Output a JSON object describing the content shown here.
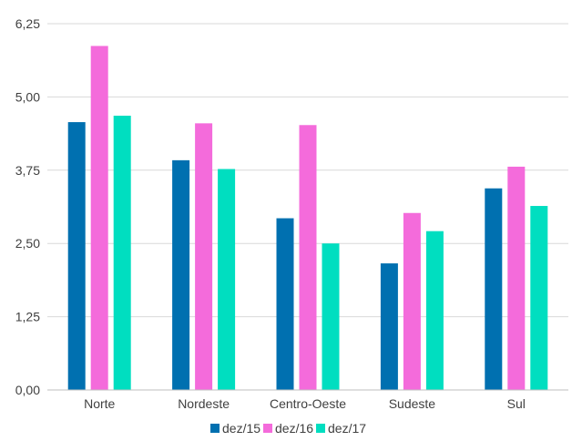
{
  "chart_data": {
    "type": "bar",
    "categories": [
      "Norte",
      "Nordeste",
      "Centro-Oeste",
      "Sudeste",
      "Sul"
    ],
    "series": [
      {
        "name": "dez/15",
        "color": "#0070B0",
        "values": [
          4.57,
          3.92,
          2.93,
          2.16,
          3.44
        ]
      },
      {
        "name": "dez/16",
        "color": "#F46BDB",
        "values": [
          5.87,
          4.55,
          4.52,
          3.02,
          3.81
        ]
      },
      {
        "name": "dez/17",
        "color": "#00DEC0",
        "values": [
          4.68,
          3.77,
          2.5,
          2.71,
          3.14
        ]
      }
    ],
    "ylim": [
      0,
      6.25
    ],
    "yticks": [
      "0,00",
      "1,25",
      "2,50",
      "3,75",
      "5,00",
      "6,25"
    ],
    "grid": true,
    "legend_position": "bottom"
  }
}
